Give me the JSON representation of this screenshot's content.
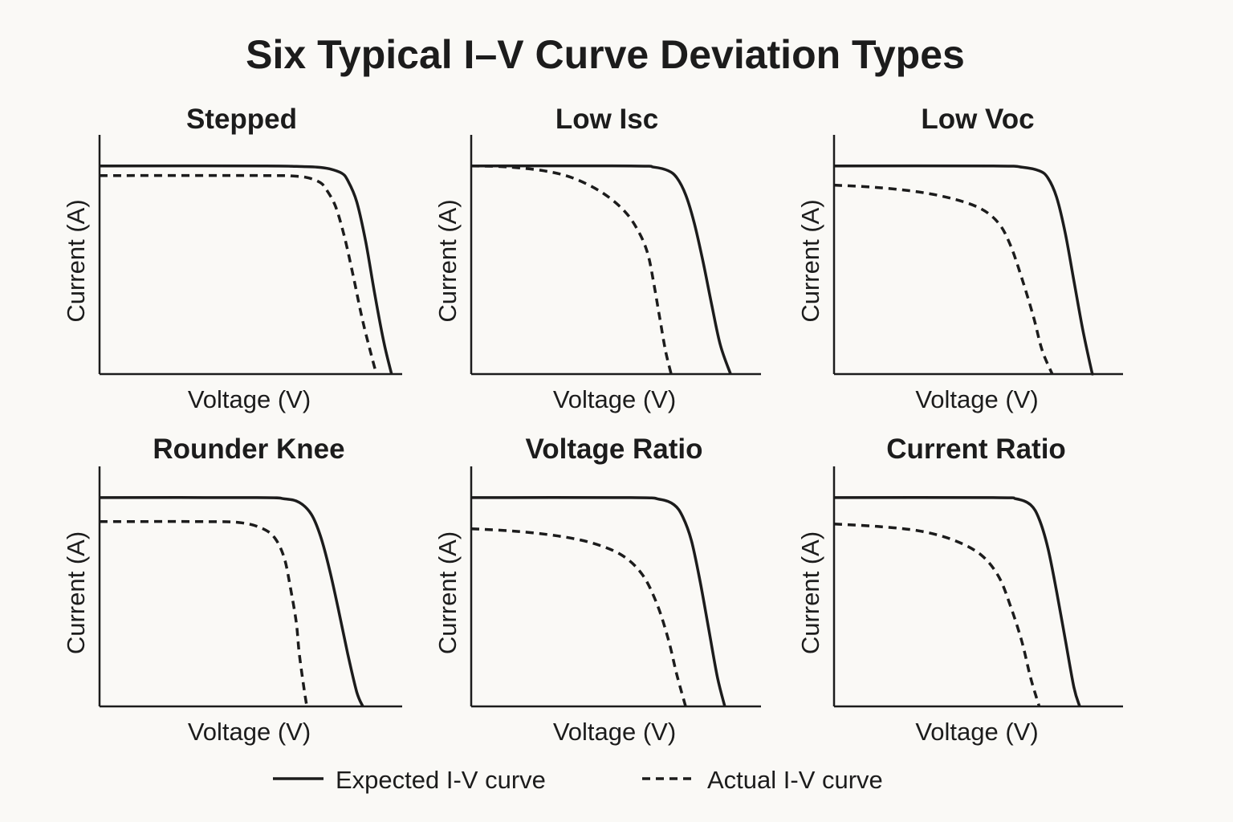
{
  "title": "Six Typical I–V Curve Deviation Types",
  "legend": {
    "expected_label": "Expected I-V curve",
    "actual_label": "Actual I-V curve"
  },
  "colors": {
    "line": "#1c1c1c",
    "background": "#faf9f6"
  },
  "chart_data": [
    {
      "type": "line",
      "title": "Stepped",
      "xlabel": "Voltage (V)",
      "ylabel": "Current (A)",
      "xlim": [
        0,
        1
      ],
      "ylim": [
        0,
        1
      ],
      "grid": false,
      "legend": "bottom",
      "series": [
        {
          "name": "Expected I-V curve",
          "style": "solid",
          "x": [
            0,
            0.55,
            0.65,
            0.72,
            0.76,
            0.8,
            0.82,
            0.85,
            0.88,
            0.91,
            0.94,
            0.965
          ],
          "y": [
            0.87,
            0.87,
            0.868,
            0.865,
            0.858,
            0.84,
            0.81,
            0.72,
            0.55,
            0.33,
            0.13,
            0.0
          ]
        },
        {
          "name": "Actual I-V curve",
          "style": "dashed",
          "x": [
            0,
            0.55,
            0.64,
            0.69,
            0.73,
            0.75,
            0.78,
            0.81,
            0.84,
            0.87,
            0.9,
            0.915
          ],
          "y": [
            0.83,
            0.83,
            0.828,
            0.82,
            0.8,
            0.77,
            0.7,
            0.57,
            0.4,
            0.22,
            0.07,
            0.0
          ]
        }
      ]
    },
    {
      "type": "line",
      "title": "Low Isc",
      "xlabel": "Voltage (V)",
      "ylabel": "Current (A)",
      "xlim": [
        0,
        1
      ],
      "ylim": [
        0,
        1
      ],
      "grid": false,
      "legend": "bottom",
      "series": [
        {
          "name": "Expected I-V curve",
          "style": "solid",
          "x": [
            0,
            0.55,
            0.63,
            0.68,
            0.71,
            0.74,
            0.77,
            0.8,
            0.83,
            0.86,
            0.895
          ],
          "y": [
            0.87,
            0.87,
            0.865,
            0.85,
            0.82,
            0.75,
            0.63,
            0.47,
            0.29,
            0.12,
            0.0
          ]
        },
        {
          "name": "Actual I-V curve",
          "style": "dashed",
          "x": [
            0,
            0.12,
            0.25,
            0.35,
            0.45,
            0.53,
            0.58,
            0.61,
            0.63,
            0.65,
            0.67,
            0.69
          ],
          "y": [
            0.87,
            0.866,
            0.85,
            0.82,
            0.76,
            0.68,
            0.59,
            0.5,
            0.38,
            0.24,
            0.1,
            0.0
          ]
        }
      ]
    },
    {
      "type": "line",
      "title": "Low Voc",
      "xlabel": "Voltage (V)",
      "ylabel": "Current (A)",
      "xlim": [
        0,
        1
      ],
      "ylim": [
        0,
        1
      ],
      "grid": false,
      "legend": "bottom",
      "series": [
        {
          "name": "Expected I-V curve",
          "style": "solid",
          "x": [
            0,
            0.55,
            0.65,
            0.71,
            0.74,
            0.77,
            0.8,
            0.83,
            0.86,
            0.89,
            0.895
          ],
          "y": [
            0.87,
            0.87,
            0.865,
            0.85,
            0.82,
            0.74,
            0.59,
            0.39,
            0.19,
            0.02,
            0.0
          ]
        },
        {
          "name": "Actual I-V curve",
          "style": "dashed",
          "x": [
            0,
            0.15,
            0.3,
            0.42,
            0.51,
            0.57,
            0.61,
            0.65,
            0.69,
            0.72,
            0.755
          ],
          "y": [
            0.79,
            0.78,
            0.76,
            0.73,
            0.69,
            0.63,
            0.54,
            0.4,
            0.24,
            0.1,
            0.0
          ]
        }
      ]
    },
    {
      "type": "line",
      "title": "Rounder Knee",
      "xlabel": "Voltage (V)",
      "ylabel": "Current (A)",
      "xlim": [
        0,
        1
      ],
      "ylim": [
        0,
        1
      ],
      "grid": false,
      "legend": "bottom",
      "series": [
        {
          "name": "Expected I-V curve",
          "style": "solid",
          "x": [
            0,
            0.52,
            0.61,
            0.66,
            0.7,
            0.73,
            0.76,
            0.79,
            0.82,
            0.85,
            0.87
          ],
          "y": [
            0.87,
            0.87,
            0.865,
            0.85,
            0.8,
            0.71,
            0.57,
            0.4,
            0.22,
            0.06,
            0.0
          ]
        },
        {
          "name": "Actual I-V curve",
          "style": "dashed",
          "x": [
            0,
            0.35,
            0.47,
            0.54,
            0.58,
            0.61,
            0.63,
            0.65,
            0.66,
            0.675,
            0.685
          ],
          "y": [
            0.77,
            0.77,
            0.765,
            0.74,
            0.7,
            0.62,
            0.5,
            0.35,
            0.22,
            0.08,
            0.0
          ]
        }
      ]
    },
    {
      "type": "line",
      "title": "Voltage Ratio",
      "xlabel": "Voltage (V)",
      "ylabel": "Current (A)",
      "xlim": [
        0,
        1
      ],
      "ylim": [
        0,
        1
      ],
      "grid": false,
      "legend": "bottom",
      "series": [
        {
          "name": "Expected I-V curve",
          "style": "solid",
          "x": [
            0,
            0.55,
            0.65,
            0.7,
            0.73,
            0.76,
            0.79,
            0.82,
            0.85,
            0.875
          ],
          "y": [
            0.87,
            0.87,
            0.863,
            0.84,
            0.79,
            0.69,
            0.52,
            0.32,
            0.12,
            0.0
          ]
        },
        {
          "name": "Actual I-V curve",
          "style": "dashed",
          "x": [
            0,
            0.15,
            0.3,
            0.42,
            0.52,
            0.59,
            0.64,
            0.68,
            0.71,
            0.74
          ],
          "y": [
            0.74,
            0.73,
            0.71,
            0.68,
            0.63,
            0.55,
            0.43,
            0.28,
            0.13,
            0.0
          ]
        }
      ]
    },
    {
      "type": "line",
      "title": "Current Ratio",
      "xlabel": "Voltage (V)",
      "ylabel": "Current (A)",
      "xlim": [
        0,
        1
      ],
      "ylim": [
        0,
        1
      ],
      "grid": false,
      "legend": "bottom",
      "series": [
        {
          "name": "Expected I-V curve",
          "style": "solid",
          "x": [
            0,
            0.55,
            0.63,
            0.68,
            0.71,
            0.74,
            0.77,
            0.8,
            0.83,
            0.85
          ],
          "y": [
            0.87,
            0.87,
            0.865,
            0.84,
            0.78,
            0.66,
            0.48,
            0.28,
            0.08,
            0.0
          ]
        },
        {
          "name": "Actual I-V curve",
          "style": "dashed",
          "x": [
            0,
            0.15,
            0.3,
            0.42,
            0.51,
            0.57,
            0.61,
            0.65,
            0.68,
            0.71
          ],
          "y": [
            0.76,
            0.75,
            0.73,
            0.69,
            0.63,
            0.54,
            0.42,
            0.27,
            0.12,
            0.0
          ]
        }
      ]
    }
  ]
}
